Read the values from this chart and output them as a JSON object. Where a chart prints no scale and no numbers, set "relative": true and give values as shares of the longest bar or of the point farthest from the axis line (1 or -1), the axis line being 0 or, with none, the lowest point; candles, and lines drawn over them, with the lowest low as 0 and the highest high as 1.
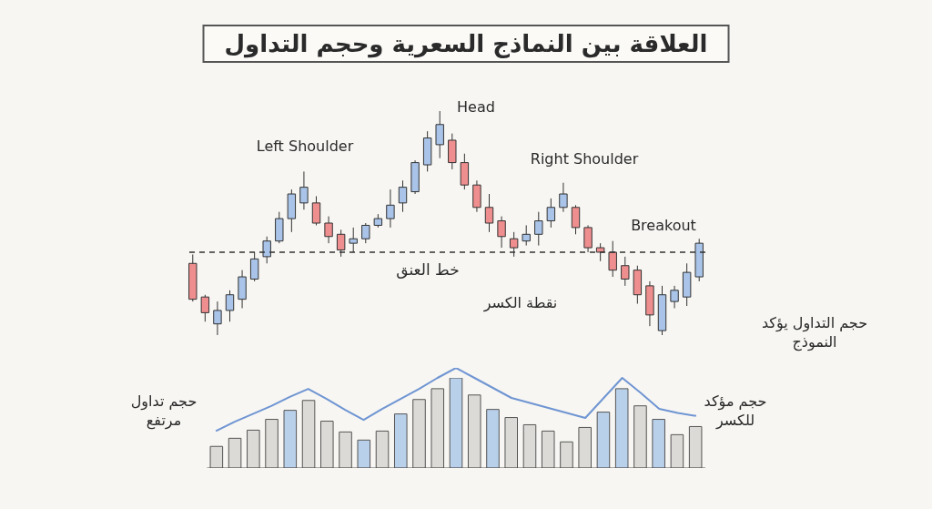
{
  "chart_data": [
    {
      "type": "candlestick",
      "title": "العلاقة بين النماذج السعرية وحجم التداول",
      "relative": true,
      "categories": [
        null,
        null,
        null,
        null,
        null,
        null,
        null,
        null,
        null,
        null,
        null,
        null,
        null,
        null,
        null,
        null,
        null,
        null,
        null,
        null,
        null,
        null,
        null,
        null,
        null,
        null,
        null,
        null,
        null,
        null,
        null,
        null,
        null,
        null,
        null,
        null,
        null,
        null,
        null,
        null,
        null,
        null
      ],
      "ohlc": [
        [
          0.32,
          0.36,
          0.15,
          0.16
        ],
        [
          0.17,
          0.18,
          0.06,
          0.1
        ],
        [
          0.05,
          0.15,
          0.0,
          0.11
        ],
        [
          0.11,
          0.2,
          0.06,
          0.18
        ],
        [
          0.16,
          0.29,
          0.12,
          0.26
        ],
        [
          0.25,
          0.37,
          0.24,
          0.34
        ],
        [
          0.35,
          0.44,
          0.32,
          0.42
        ],
        [
          0.42,
          0.55,
          0.41,
          0.52
        ],
        [
          0.52,
          0.65,
          0.46,
          0.63
        ],
        [
          0.59,
          0.73,
          0.56,
          0.66
        ],
        [
          0.59,
          0.62,
          0.49,
          0.5
        ],
        [
          0.5,
          0.53,
          0.41,
          0.44
        ],
        [
          0.45,
          0.47,
          0.35,
          0.38
        ],
        [
          0.41,
          0.48,
          0.37,
          0.43
        ],
        [
          0.43,
          0.5,
          0.41,
          0.49
        ],
        [
          0.49,
          0.54,
          0.48,
          0.52
        ],
        [
          0.52,
          0.65,
          0.48,
          0.58
        ],
        [
          0.59,
          0.69,
          0.55,
          0.66
        ],
        [
          0.64,
          0.78,
          0.63,
          0.77
        ],
        [
          0.76,
          0.91,
          0.73,
          0.88
        ],
        [
          0.85,
          1.0,
          0.79,
          0.94
        ],
        [
          0.87,
          0.9,
          0.74,
          0.77
        ],
        [
          0.77,
          0.81,
          0.65,
          0.67
        ],
        [
          0.67,
          0.69,
          0.55,
          0.57
        ],
        [
          0.57,
          0.63,
          0.46,
          0.5
        ],
        [
          0.51,
          0.53,
          0.39,
          0.44
        ],
        [
          0.43,
          0.46,
          0.35,
          0.39
        ],
        [
          0.42,
          0.49,
          0.4,
          0.45
        ],
        [
          0.45,
          0.55,
          0.4,
          0.51
        ],
        [
          0.51,
          0.61,
          0.48,
          0.57
        ],
        [
          0.57,
          0.68,
          0.55,
          0.63
        ],
        [
          0.57,
          0.58,
          0.45,
          0.48
        ],
        [
          0.48,
          0.49,
          0.37,
          0.39
        ],
        [
          0.39,
          0.41,
          0.33,
          0.37
        ],
        [
          0.37,
          0.42,
          0.26,
          0.29
        ],
        [
          0.31,
          0.35,
          0.22,
          0.25
        ],
        [
          0.29,
          0.31,
          0.14,
          0.18
        ],
        [
          0.22,
          0.24,
          0.04,
          0.09
        ],
        [
          0.02,
          0.22,
          0.0,
          0.18
        ],
        [
          0.15,
          0.22,
          0.12,
          0.2
        ],
        [
          0.17,
          0.32,
          0.13,
          0.28
        ],
        [
          0.26,
          0.43,
          0.24,
          0.41
        ]
      ],
      "colors": [
        "#ef8e8e",
        "#ef8e8e",
        "#a9c4e8",
        "#a9c4e8",
        "#a9c4e8",
        "#a9c4e8",
        "#a9c4e8",
        "#a9c4e8",
        "#a9c4e8",
        "#a9c4e8",
        "#ef8e8e",
        "#ef8e8e",
        "#ef8e8e",
        "#a9c4e8",
        "#a9c4e8",
        "#a9c4e8",
        "#a9c4e8",
        "#a9c4e8",
        "#a9c4e8",
        "#a9c4e8",
        "#a9c4e8",
        "#ef8e8e",
        "#ef8e8e",
        "#ef8e8e",
        "#ef8e8e",
        "#ef8e8e",
        "#ef8e8e",
        "#a9c4e8",
        "#a9c4e8",
        "#a9c4e8",
        "#a9c4e8",
        "#ef8e8e",
        "#ef8e8e",
        "#ef8e8e",
        "#ef8e8e",
        "#ef8e8e",
        "#ef8e8e",
        "#ef8e8e",
        "#a9c4e8",
        "#a9c4e8",
        "#a9c4e8",
        "#a9c4e8"
      ],
      "ref_lines": [
        {
          "axis": "y",
          "value": 0.37,
          "label": "خط العنق",
          "color": "#333333",
          "line_style": "dashed"
        }
      ],
      "annotations": [
        "Left Shoulder",
        "Head",
        "Right Shoulder",
        "Breakout",
        "نقطة الكسر",
        "حجم التداول يؤكد النموذج"
      ]
    },
    {
      "type": "bar",
      "relative": true,
      "categories": [
        null,
        null,
        null,
        null,
        null,
        null,
        null,
        null,
        null,
        null,
        null,
        null,
        null,
        null,
        null,
        null,
        null,
        null,
        null,
        null,
        null,
        null,
        null,
        null,
        null,
        null,
        null
      ],
      "series": [
        {
          "colors": [
            "#dcdad6",
            "#dcdad6",
            "#dcdad6",
            "#dcdad6",
            "#b9d0ea",
            "#dcdad6",
            "#dcdad6",
            "#dcdad6",
            "#b9d0ea",
            "#dcdad6",
            "#b9d0ea",
            "#dcdad6",
            "#dcdad6",
            "#b9d0ea",
            "#dcdad6",
            "#b9d0ea",
            "#dcdad6",
            "#dcdad6",
            "#dcdad6",
            "#dcdad6",
            "#dcdad6",
            "#b9d0ea",
            "#b9d0ea",
            "#dcdad6",
            "#b9d0ea",
            "#dcdad6",
            "#dcdad6"
          ],
          "values": [
            0.24,
            0.33,
            0.42,
            0.54,
            0.64,
            0.75,
            0.52,
            0.4,
            0.31,
            0.41,
            0.6,
            0.76,
            0.88,
            1.0,
            0.81,
            0.65,
            0.56,
            0.48,
            0.41,
            0.29,
            0.45,
            0.62,
            0.88,
            0.69,
            0.54,
            0.37,
            0.46
          ]
        }
      ],
      "annotations": [
        "حجم تداول مرتفع",
        "حجم مؤكد للكسر"
      ]
    },
    {
      "type": "line",
      "relative": true,
      "categories": [
        null,
        null,
        null,
        null,
        null,
        null,
        null,
        null,
        null,
        null,
        null,
        null,
        null,
        null,
        null,
        null,
        null,
        null,
        null,
        null,
        null,
        null,
        null,
        null,
        null,
        null,
        null
      ],
      "series": [
        {
          "color": "#6f95d2",
          "values": [
            0.37,
            0.46,
            0.54,
            0.62,
            0.71,
            0.79,
            0.69,
            0.58,
            0.48,
            0.59,
            0.69,
            0.79,
            0.9,
            1.0,
            0.9,
            0.8,
            0.7,
            0.65,
            0.6,
            0.55,
            0.5,
            0.7,
            0.9,
            0.75,
            0.59,
            0.55,
            0.52
          ]
        }
      ]
    }
  ]
}
